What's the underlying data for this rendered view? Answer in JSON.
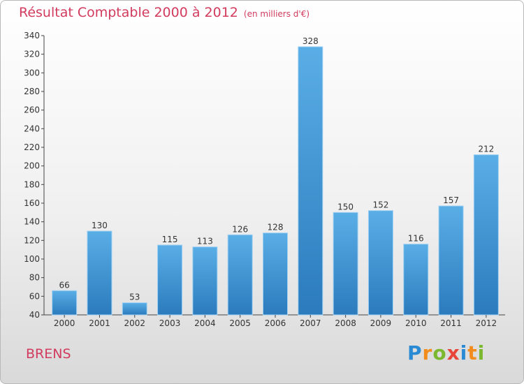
{
  "header": {
    "title": "Résultat Comptable 2000 à 2012",
    "unit": "(en milliers d'€)"
  },
  "footer": {
    "commune": "BRENS",
    "logo": [
      "P",
      "r",
      "o",
      "x",
      "i",
      "t",
      "i"
    ]
  },
  "colors": {
    "title": "#d23b5e",
    "bar_light": "#5aaee6",
    "bar_dark": "#2b7bbd",
    "logo": [
      "#2a8ad4",
      "#f28c1c",
      "#7cb82f",
      "#e8443a",
      "#2a8ad4",
      "#f28c1c",
      "#7cb82f"
    ]
  },
  "chart_data": {
    "type": "bar",
    "categories": [
      "2000",
      "2001",
      "2002",
      "2003",
      "2004",
      "2005",
      "2006",
      "2007",
      "2008",
      "2009",
      "2010",
      "2011",
      "2012"
    ],
    "values": [
      66,
      130,
      53,
      115,
      113,
      126,
      128,
      328,
      150,
      152,
      116,
      157,
      212
    ],
    "ylim": [
      40,
      340
    ],
    "yticks": [
      40,
      60,
      80,
      100,
      120,
      140,
      160,
      180,
      200,
      220,
      240,
      260,
      280,
      300,
      320,
      340
    ],
    "grid": false
  }
}
